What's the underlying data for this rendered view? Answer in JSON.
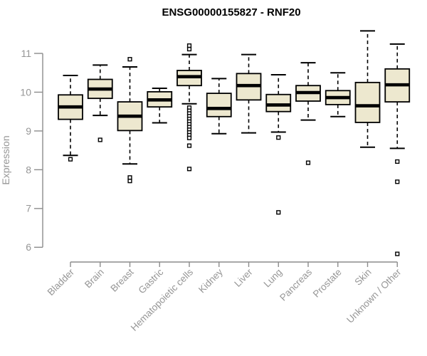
{
  "chart_data": {
    "type": "boxplot",
    "title": "ENSG00000155827 - RNF20",
    "ylabel": "Expression",
    "xlabel": "",
    "ylim": [
      5.6,
      11.7
    ],
    "yticks": [
      6,
      7,
      8,
      9,
      10,
      11
    ],
    "grid": false,
    "legend": "none",
    "colors": {
      "box_fill": "#EDE8CF",
      "box_edge": "#000000",
      "median": "#000000",
      "whisker": "#000000",
      "outlier": "#000000",
      "axis_line": "#8C8C8C",
      "axis_text": "#969696",
      "title_text": "#000000",
      "background": "#FFFFFF"
    },
    "categories": [
      "Bladder",
      "Brain",
      "Breast",
      "Gastric",
      "Hematopoietic cells",
      "Kidney",
      "Liver",
      "Lung",
      "Pancreas",
      "Prostate",
      "Skin",
      "Unknown / Other"
    ],
    "series": [
      {
        "name": "Bladder",
        "whisker_low": 8.37,
        "q1": 9.3,
        "median": 9.62,
        "q3": 9.93,
        "whisker_high": 10.43,
        "outliers": [
          8.27
        ]
      },
      {
        "name": "Brain",
        "whisker_low": 9.4,
        "q1": 9.84,
        "median": 10.08,
        "q3": 10.33,
        "whisker_high": 10.7,
        "outliers": [
          8.77
        ]
      },
      {
        "name": "Breast",
        "whisker_low": 8.15,
        "q1": 9.01,
        "median": 9.38,
        "q3": 9.75,
        "whisker_high": 10.65,
        "outliers": [
          10.85,
          7.8,
          7.71
        ]
      },
      {
        "name": "Gastric",
        "whisker_low": 9.21,
        "q1": 9.62,
        "median": 9.8,
        "q3": 10.01,
        "whisker_high": 10.1,
        "outliers": []
      },
      {
        "name": "Hematopoietic cells",
        "whisker_low": 9.7,
        "q1": 10.17,
        "median": 10.4,
        "q3": 10.56,
        "whisker_high": 10.97,
        "outliers": [
          11.2,
          11.11,
          9.6,
          9.52,
          9.45,
          9.38,
          9.31,
          9.24,
          9.17,
          9.1,
          9.03,
          8.96,
          8.89,
          8.82,
          8.62,
          8.02
        ]
      },
      {
        "name": "Kidney",
        "whisker_low": 8.93,
        "q1": 9.37,
        "median": 9.58,
        "q3": 9.97,
        "whisker_high": 10.35,
        "outliers": []
      },
      {
        "name": "Liver",
        "whisker_low": 8.95,
        "q1": 9.8,
        "median": 10.17,
        "q3": 10.48,
        "whisker_high": 10.97,
        "outliers": []
      },
      {
        "name": "Lung",
        "whisker_low": 8.97,
        "q1": 9.5,
        "median": 9.67,
        "q3": 9.94,
        "whisker_high": 10.45,
        "outliers": [
          8.83,
          6.9
        ]
      },
      {
        "name": "Pancreas",
        "whisker_low": 9.28,
        "q1": 9.77,
        "median": 9.99,
        "q3": 10.17,
        "whisker_high": 10.76,
        "outliers": [
          8.18
        ]
      },
      {
        "name": "Prostate",
        "whisker_low": 9.37,
        "q1": 9.68,
        "median": 9.86,
        "q3": 10.04,
        "whisker_high": 10.5,
        "outliers": []
      },
      {
        "name": "Skin",
        "whisker_low": 8.58,
        "q1": 9.22,
        "median": 9.65,
        "q3": 10.25,
        "whisker_high": 11.58,
        "outliers": []
      },
      {
        "name": "Unknown / Other",
        "whisker_low": 8.55,
        "q1": 9.75,
        "median": 10.19,
        "q3": 10.6,
        "whisker_high": 11.24,
        "outliers": [
          8.21,
          7.69,
          5.83
        ]
      }
    ]
  }
}
